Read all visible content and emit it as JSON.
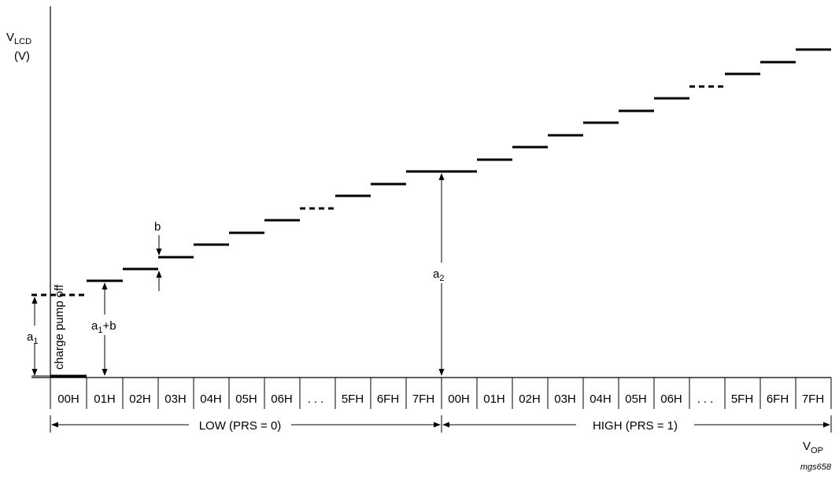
{
  "y_axis": {
    "label_main": "V",
    "label_sub": "LCD",
    "unit": "(V)"
  },
  "x_axis": {
    "label_main": "V",
    "label_sub": "OP"
  },
  "codes": [
    "00H",
    "01H",
    "02H",
    "03H",
    "04H",
    "05H",
    "06H",
    "...",
    "5FH",
    "6FH",
    "7FH",
    "00H",
    "01H",
    "02H",
    "03H",
    "04H",
    "05H",
    "06H",
    "...",
    "5FH",
    "6FH",
    "7FH"
  ],
  "ranges": [
    {
      "label": "LOW (PRS = 0)"
    },
    {
      "label": "HIGH (PRS = 1)"
    }
  ],
  "annotations": {
    "charge_pump": "charge pump off",
    "a1_main": "a",
    "a1_sub": "1",
    "a1b_main": "a",
    "a1b_sub": "1",
    "a1b_tail": "+b",
    "a2_main": "a",
    "a2_sub": "2",
    "b": "b"
  },
  "figure_id": "mgs658"
}
